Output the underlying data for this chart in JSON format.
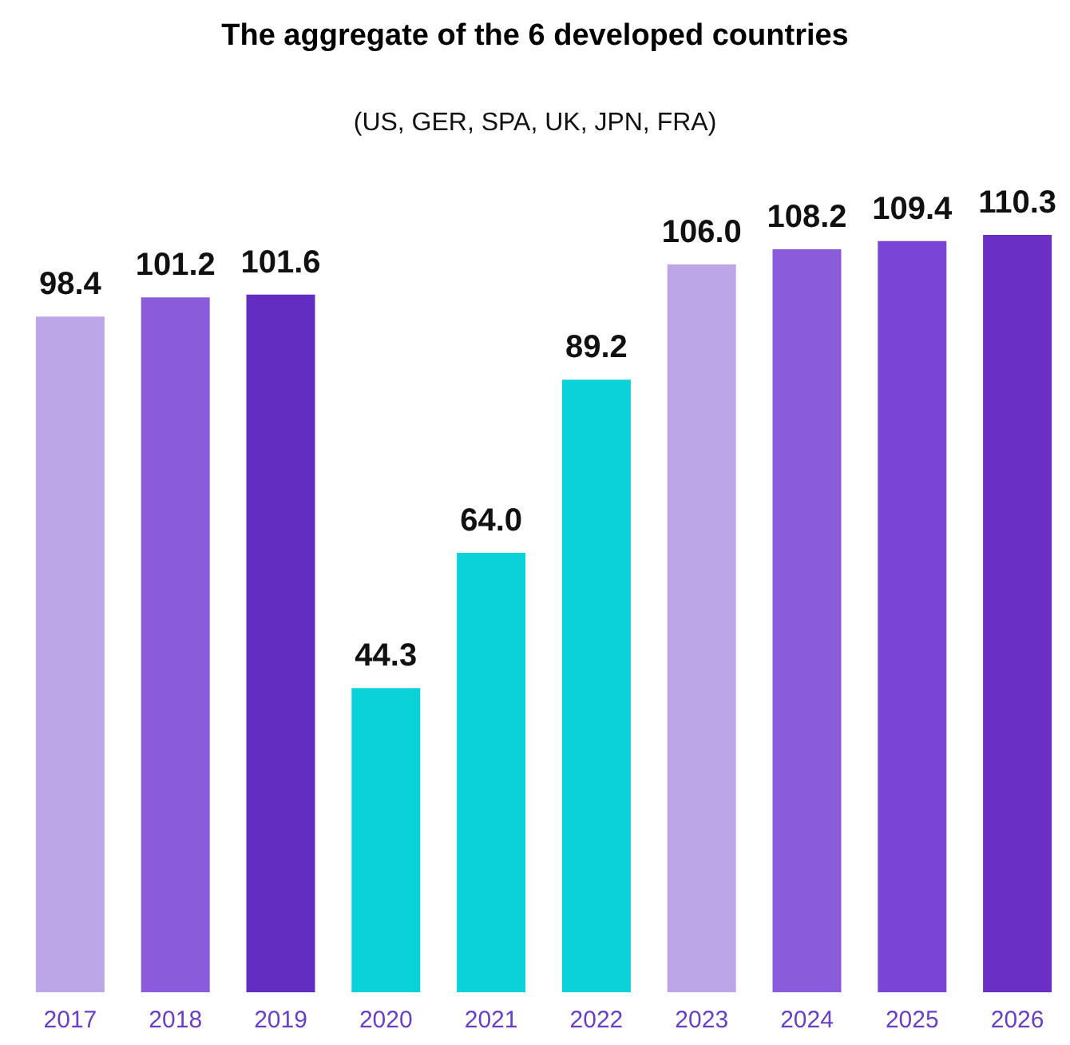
{
  "chart_data": {
    "type": "bar",
    "title": "The aggregate of the 6 developed countries",
    "subtitle": "(US, GER, SPA, UK, JPN, FRA)",
    "categories": [
      "2017",
      "2018",
      "2019",
      "2020",
      "2021",
      "2022",
      "2023",
      "2024",
      "2025",
      "2026"
    ],
    "values": [
      98.4,
      101.2,
      101.6,
      44.3,
      64.0,
      89.2,
      106.0,
      108.2,
      109.4,
      110.3
    ],
    "value_labels": [
      "98.4",
      "101.2",
      "101.6",
      "44.3",
      "64.0",
      "89.2",
      "106.0",
      "108.2",
      "109.4",
      "110.3"
    ],
    "colors": [
      "#bca6e8",
      "#8a5cdb",
      "#642dc2",
      "#0bd2d9",
      "#0bd2d9",
      "#0bd2d9",
      "#bca6e8",
      "#8a5cdb",
      "#7a44d6",
      "#6a2fc4"
    ]
  }
}
